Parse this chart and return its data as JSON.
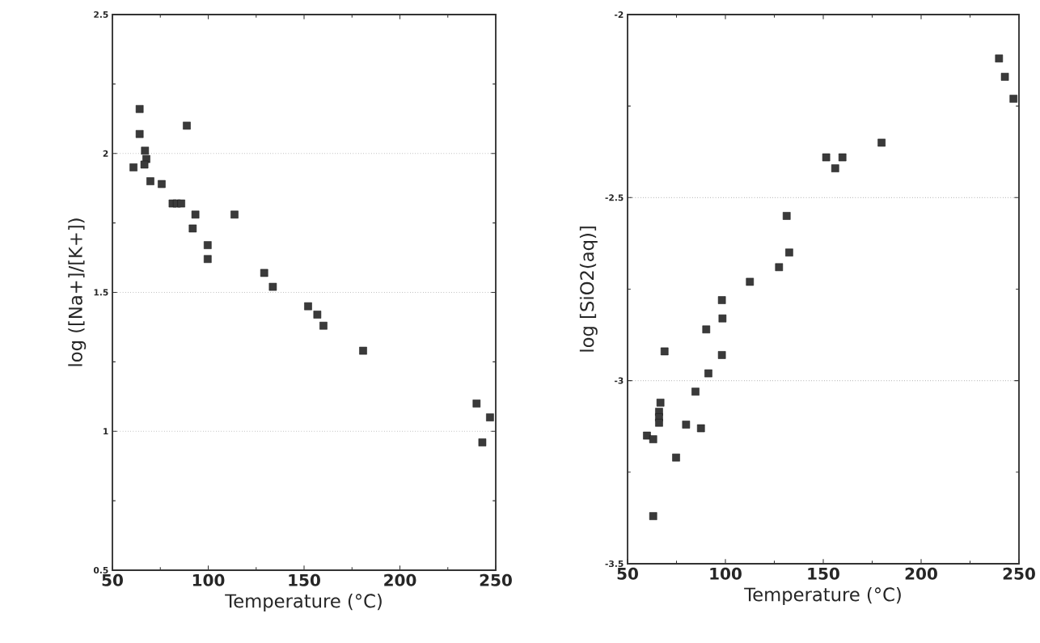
{
  "chart_data": [
    {
      "type": "scatter",
      "xlabel": "Temperature (°C)",
      "ylabel": "log ([Na+]/[K+])",
      "xlim": [
        50,
        250
      ],
      "ylim": [
        0.5,
        2.5
      ],
      "xticks": [
        50,
        100,
        150,
        200,
        250
      ],
      "yticks": [
        {
          "value": 0.5,
          "label": "0.5"
        },
        {
          "value": 1,
          "label": "1"
        },
        {
          "value": 1.5,
          "label": "1.5"
        },
        {
          "value": 2,
          "label": "2"
        },
        {
          "value": 2.5,
          "label": "2.5"
        }
      ],
      "grid": "y",
      "marker": "square",
      "series": [
        {
          "color": "#3a3a3a",
          "x": [
            64.2,
            64.2,
            88.8,
            67,
            67.7,
            66.7,
            61,
            69.8,
            75.7,
            81.4,
            83.6,
            85.9,
            93.3,
            91.9,
            113.7,
            99.7,
            99.7,
            129.2,
            133.7,
            152.1,
            156.9,
            160.1,
            180.8,
            240,
            247,
            243
          ],
          "values": [
            2.16,
            2.07,
            2.1,
            2.01,
            1.98,
            1.96,
            1.95,
            1.9,
            1.89,
            1.82,
            1.82,
            1.82,
            1.78,
            1.73,
            1.78,
            1.67,
            1.62,
            1.57,
            1.52,
            1.45,
            1.42,
            1.38,
            1.29,
            1.1,
            1.05,
            0.96
          ]
        }
      ]
    },
    {
      "type": "scatter",
      "xlabel": "Temperature (°C)",
      "ylabel": "log [SiO2(aq)]",
      "xlim": [
        50,
        250
      ],
      "ylim": [
        -3.5,
        -2
      ],
      "xticks": [
        50,
        100,
        150,
        200,
        250
      ],
      "yticks": [
        {
          "value": -3.5,
          "label": "-3.5"
        },
        {
          "value": -3,
          "label": "-3"
        },
        {
          "value": -2.5,
          "label": "-2.5"
        },
        {
          "value": -2,
          "label": "-2"
        }
      ],
      "grid": "y",
      "marker": "square",
      "series": [
        {
          "color": "#3a3a3a",
          "x": [
            151.5,
            159.8,
            156.1,
            179.8,
            239.8,
            242.8,
            247.2,
            131.3,
            132.6,
            127.4,
            112.5,
            98.2,
            98.5,
            90.2,
            68.9,
            98.2,
            91.3,
            84.7,
            66.8,
            66.1,
            66.1,
            66.1,
            79.9,
            87.5,
            59.9,
            63.1,
            74.8,
            63.1
          ],
          "values": [
            -2.39,
            -2.39,
            -2.42,
            -2.35,
            -2.12,
            -2.17,
            -2.23,
            -2.55,
            -2.65,
            -2.69,
            -2.73,
            -2.78,
            -2.83,
            -2.86,
            -2.92,
            -2.93,
            -2.98,
            -3.03,
            -3.06,
            -3.085,
            -3.1,
            -3.115,
            -3.12,
            -3.13,
            -3.15,
            -3.16,
            -3.21,
            -3.37
          ]
        }
      ]
    }
  ]
}
